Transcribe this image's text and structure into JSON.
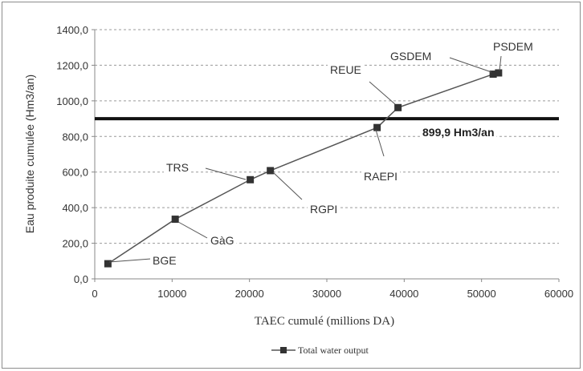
{
  "chart_data": {
    "type": "line",
    "xlabel": "TAEC cumulé (millions DA)",
    "ylabel": "Eau produite cumulée (Hm3/an)",
    "xlim": [
      0,
      60000
    ],
    "ylim": [
      0,
      1400
    ],
    "x_ticks": [
      "0",
      "10000",
      "20000",
      "30000",
      "40000",
      "50000",
      "60000"
    ],
    "y_ticks": [
      "0,0",
      "200,0",
      "400,0",
      "600,0",
      "800,0",
      "1000,0",
      "1200,0",
      "1400,0"
    ],
    "grid": "horizontal dashed",
    "legend_position": "bottom",
    "series": [
      {
        "name": "Total water output",
        "color": "#555555",
        "marker": "square",
        "points": [
          {
            "x": 1700,
            "y": 85,
            "label": "BGE"
          },
          {
            "x": 10400,
            "y": 335,
            "label": "GàG"
          },
          {
            "x": 20100,
            "y": 557,
            "label": "TRS"
          },
          {
            "x": 22700,
            "y": 608,
            "label": "RGPI"
          },
          {
            "x": 36500,
            "y": 850,
            "label": "RAEPI"
          },
          {
            "x": 39200,
            "y": 962,
            "label": "REUE"
          },
          {
            "x": 51500,
            "y": 1150,
            "label": "GSDEM"
          },
          {
            "x": 52200,
            "y": 1157,
            "label": "PSDEM"
          }
        ]
      }
    ],
    "threshold": {
      "y": 899.9,
      "label": "899,9 Hm3/an",
      "color": "#111111"
    }
  }
}
